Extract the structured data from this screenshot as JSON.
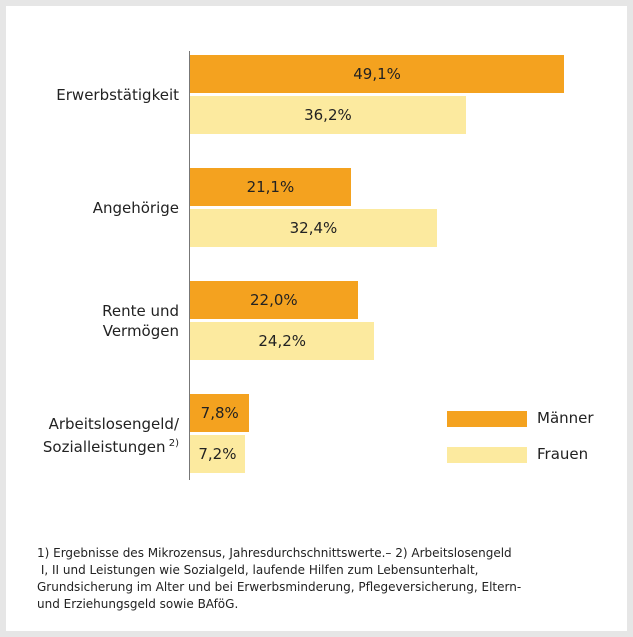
{
  "chart_data": {
    "type": "bar",
    "orientation": "horizontal",
    "categories": [
      "Erwerbstätigkeit",
      "Angehörige",
      "Rente und\nVermögen",
      "Arbeitslosengeld/\nSozialleistungen"
    ],
    "category_superscripts": [
      null,
      null,
      null,
      "2)"
    ],
    "series": [
      {
        "name": "Männer",
        "color": "#f4a21f",
        "values": [
          49.1,
          21.1,
          22.0,
          7.8
        ],
        "value_labels": [
          "49,1%",
          "21,1%",
          "22,0%",
          "7,8%"
        ]
      },
      {
        "name": "Frauen",
        "color": "#fcea9f",
        "values": [
          36.2,
          32.4,
          24.2,
          7.2
        ],
        "value_labels": [
          "36,2%",
          "32,4%",
          "24,2%",
          "7,2%"
        ]
      }
    ],
    "footnote": [
      "1) Ergebnisse des Mikrozensus, Jahresdurchschnittswerte.– 2) Arbeitslosengeld",
      " I, II und Leistungen wie Sozialgeld, laufende Hilfen zum Lebensunterhalt,",
      "Grundsicherung im Alter und bei Erwerbsminderung, Pflegeversicherung, Eltern-",
      "und Erziehungsgeld sowie BAföG."
    ]
  }
}
